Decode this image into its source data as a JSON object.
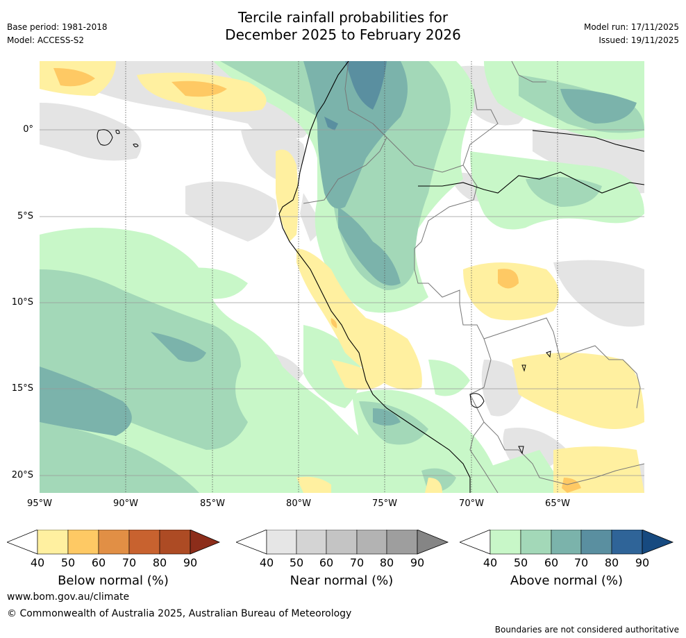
{
  "header": {
    "title_line1": "Tercile rainfall probabilities for",
    "title_line2": "December 2025 to February 2026",
    "base_period": "Base period: 1981-2018",
    "model": "Model: ACCESS-S2",
    "model_run": "Model run: 17/11/2025",
    "issued": "Issued: 19/11/2025"
  },
  "map": {
    "lat_labels": [
      "0°",
      "5°S",
      "10°S",
      "15°S",
      "20°S"
    ],
    "lon_labels": [
      "95°W",
      "90°W",
      "85°W",
      "80°W",
      "75°W",
      "70°W",
      "65°W"
    ]
  },
  "colorbars": [
    {
      "label": "Below normal (%)",
      "ticks": [
        "40",
        "50",
        "60",
        "70",
        "80",
        "90"
      ],
      "colors": [
        "#fff0a0",
        "#fec964",
        "#e18f45",
        "#c8622f",
        "#ad4b24",
        "#8c2d1a"
      ]
    },
    {
      "label": "Near normal (%)",
      "ticks": [
        "40",
        "50",
        "60",
        "70",
        "80",
        "90"
      ],
      "colors": [
        "#e6e6e6",
        "#d4d4d4",
        "#c4c4c4",
        "#b3b3b3",
        "#9e9e9e",
        "#858585"
      ]
    },
    {
      "label": "Above normal (%)",
      "ticks": [
        "40",
        "50",
        "60",
        "70",
        "80",
        "90"
      ],
      "colors": [
        "#c8f7c8",
        "#a3d8b8",
        "#7bb3ab",
        "#5a8fa0",
        "#2f6498",
        "#174a80"
      ]
    }
  ],
  "footer": {
    "url": "www.bom.gov.au/climate",
    "copyright": "© Commonwealth of Australia 2025, Australian Bureau of Meteorology",
    "disclaimer": "Boundaries are not considered authoritative"
  }
}
